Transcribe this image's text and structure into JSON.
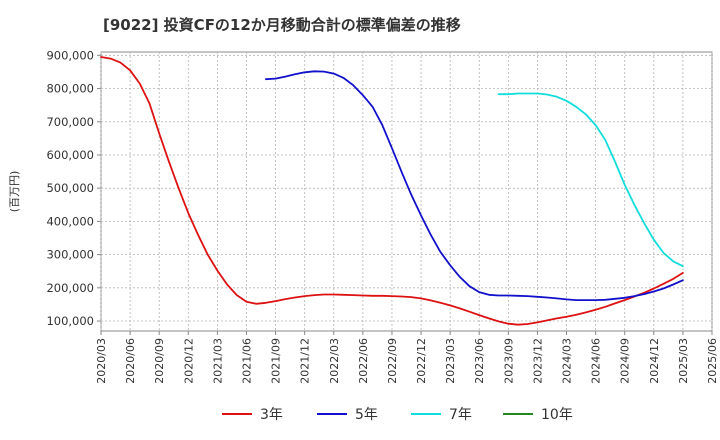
{
  "chart_data": {
    "type": "line",
    "title": "[9022]  投資CFの12か月移動合計の標準偏差の推移",
    "ylabel": "(百万円)",
    "xlabel": "",
    "ylim": [
      70000,
      910000
    ],
    "yticks": [
      100000,
      200000,
      300000,
      400000,
      500000,
      600000,
      700000,
      800000,
      900000
    ],
    "ytick_labels": [
      "100,000",
      "200,000",
      "300,000",
      "400,000",
      "500,000",
      "600,000",
      "700,000",
      "800,000",
      "900,000"
    ],
    "xticks": [
      "2020/03",
      "2020/06",
      "2020/09",
      "2020/12",
      "2021/03",
      "2021/06",
      "2021/09",
      "2021/12",
      "2022/03",
      "2022/06",
      "2022/09",
      "2022/12",
      "2023/03",
      "2023/06",
      "2023/09",
      "2023/12",
      "2024/03",
      "2024/06",
      "2024/09",
      "2024/12",
      "2025/03",
      "2025/06"
    ],
    "grid": true,
    "legend_position": "bottom",
    "series": [
      {
        "name": "3年",
        "color": "#dd1111",
        "x": [
          "2020/03",
          "2020/04",
          "2020/05",
          "2020/06",
          "2020/07",
          "2020/08",
          "2020/09",
          "2020/10",
          "2020/11",
          "2020/12",
          "2021/01",
          "2021/02",
          "2021/03",
          "2021/04",
          "2021/05",
          "2021/06",
          "2021/07",
          "2021/08",
          "2021/09",
          "2021/10",
          "2021/11",
          "2021/12",
          "2022/01",
          "2022/02",
          "2022/03",
          "2022/04",
          "2022/05",
          "2022/06",
          "2022/07",
          "2022/08",
          "2022/09",
          "2022/10",
          "2022/11",
          "2022/12",
          "2023/01",
          "2023/02",
          "2023/03",
          "2023/04",
          "2023/05",
          "2023/06",
          "2023/07",
          "2023/08",
          "2023/09",
          "2023/10",
          "2023/11",
          "2023/12",
          "2024/01",
          "2024/02",
          "2024/03",
          "2024/04",
          "2024/05",
          "2024/06",
          "2024/07",
          "2024/08",
          "2024/09",
          "2024/10",
          "2024/11",
          "2024/12",
          "2025/01",
          "2025/02",
          "2025/03"
        ],
        "values": [
          895000,
          890000,
          878000,
          855000,
          815000,
          755000,
          665000,
          580000,
          500000,
          425000,
          360000,
          300000,
          252000,
          210000,
          178000,
          158000,
          152000,
          155000,
          160000,
          166000,
          171000,
          175000,
          178000,
          180000,
          180000,
          179000,
          178000,
          177000,
          176000,
          176000,
          175000,
          174000,
          172000,
          168000,
          162000,
          155000,
          147000,
          138000,
          128000,
          118000,
          108000,
          99000,
          92000,
          89000,
          91000,
          96000,
          102000,
          108000,
          113000,
          119000,
          126000,
          134000,
          143000,
          153000,
          163000,
          174000,
          185000,
          198000,
          212000,
          227000,
          245000
        ]
      },
      {
        "name": "5年",
        "color": "#1111cc",
        "x": [
          "2021/08",
          "2021/09",
          "2021/10",
          "2021/11",
          "2021/12",
          "2022/01",
          "2022/02",
          "2022/03",
          "2022/04",
          "2022/05",
          "2022/06",
          "2022/07",
          "2022/08",
          "2022/09",
          "2022/10",
          "2022/11",
          "2022/12",
          "2023/01",
          "2023/02",
          "2023/03",
          "2023/04",
          "2023/05",
          "2023/06",
          "2023/07",
          "2023/08",
          "2023/09",
          "2023/10",
          "2023/11",
          "2023/12",
          "2024/01",
          "2024/02",
          "2024/03",
          "2024/04",
          "2024/05",
          "2024/06",
          "2024/07",
          "2024/08",
          "2024/09",
          "2024/10",
          "2024/11",
          "2024/12",
          "2025/01",
          "2025/02",
          "2025/03"
        ],
        "values": [
          828000,
          830000,
          836000,
          843000,
          849000,
          852000,
          851000,
          845000,
          832000,
          810000,
          780000,
          745000,
          690000,
          620000,
          548000,
          480000,
          418000,
          360000,
          308000,
          268000,
          233000,
          205000,
          187000,
          179000,
          177000,
          177000,
          176000,
          175000,
          173000,
          171000,
          168000,
          165000,
          163000,
          163000,
          163000,
          164000,
          167000,
          170000,
          175000,
          181000,
          189000,
          198000,
          210000,
          223000
        ]
      },
      {
        "name": "7年",
        "color": "#11dddd",
        "x": [
          "2023/08",
          "2023/09",
          "2023/10",
          "2023/11",
          "2023/12",
          "2024/01",
          "2024/02",
          "2024/03",
          "2024/04",
          "2024/05",
          "2024/06",
          "2024/07",
          "2024/08",
          "2024/09",
          "2024/10",
          "2024/11",
          "2024/12",
          "2025/01",
          "2025/02",
          "2025/03"
        ],
        "values": [
          783000,
          783000,
          785000,
          785000,
          785000,
          782000,
          775000,
          763000,
          745000,
          722000,
          690000,
          645000,
          580000,
          510000,
          450000,
          395000,
          345000,
          305000,
          280000,
          265000
        ]
      },
      {
        "name": "10年",
        "color": "#228822",
        "x": [],
        "values": []
      }
    ]
  }
}
